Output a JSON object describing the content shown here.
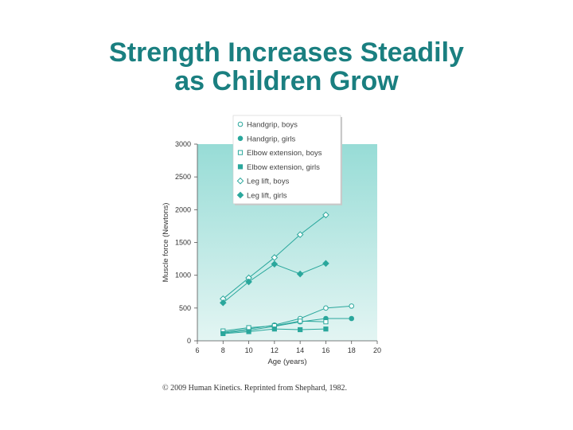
{
  "title_line1": "Strength Increases Steadily",
  "title_line2": "as Children Grow",
  "credit": "© 2009 Human Kinetics. Reprinted from Shephard, 1982.",
  "colors": {
    "title": "#1a7f80",
    "line": "#2aa79c",
    "plot_top": "#97dcd6",
    "plot_bottom": "#e3f5f3"
  },
  "chart_data": {
    "type": "line",
    "xlabel": "Age (years)",
    "ylabel": "Muscle force (Newtons)",
    "xlim": [
      6,
      20
    ],
    "ylim": [
      0,
      3000
    ],
    "xticks": [
      "6",
      "8",
      "10",
      "12",
      "14",
      "16",
      "18",
      "20"
    ],
    "yticks": [
      "0",
      "500",
      "1000",
      "1500",
      "2000",
      "2500",
      "3000"
    ],
    "grid": false,
    "legend_position": "top",
    "series": [
      {
        "name": "Handgrip, boys",
        "marker": "circle-open",
        "x": [
          8,
          10,
          12,
          14,
          16,
          18
        ],
        "y": [
          130,
          180,
          240,
          340,
          500,
          530
        ]
      },
      {
        "name": "Handgrip, girls",
        "marker": "circle-filled",
        "x": [
          8,
          10,
          12,
          14,
          16,
          18
        ],
        "y": [
          120,
          160,
          220,
          290,
          340,
          340
        ]
      },
      {
        "name": "Elbow extension, boys",
        "marker": "square-open",
        "x": [
          8,
          10,
          12,
          14,
          16
        ],
        "y": [
          150,
          200,
          230,
          300,
          290
        ]
      },
      {
        "name": "Elbow extension, girls",
        "marker": "square-filled",
        "x": [
          8,
          10,
          12,
          14,
          16
        ],
        "y": [
          110,
          140,
          180,
          170,
          180
        ]
      },
      {
        "name": "Leg lift, boys",
        "marker": "diamond-open",
        "x": [
          8,
          10,
          12,
          14,
          16
        ],
        "y": [
          640,
          960,
          1270,
          1620,
          1920
        ]
      },
      {
        "name": "Leg lift, girls",
        "marker": "diamond-filled",
        "x": [
          8,
          10,
          12,
          14,
          16
        ],
        "y": [
          580,
          900,
          1170,
          1020,
          1180
        ]
      }
    ]
  }
}
